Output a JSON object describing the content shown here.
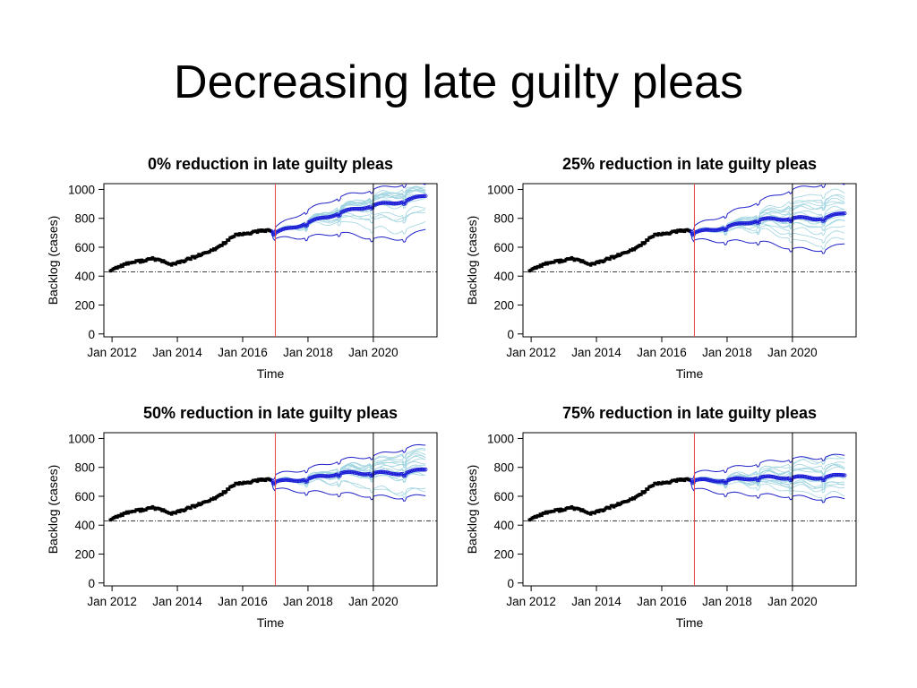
{
  "slide": {
    "title": "Decreasing late guilty pleas"
  },
  "colors": {
    "history": "#000000",
    "mean": "#1a1ad6",
    "bounds": "#2020c8",
    "simulations": "#9fd4e0",
    "forecast_start": "#e84a4a",
    "marker_2020": "#000000",
    "reference": "#000000"
  },
  "chart_data": [
    {
      "type": "line",
      "title": "0% reduction in late guilty pleas",
      "xlabel": "Time",
      "ylabel": "Backlog (cases)",
      "xlim": [
        2011.75,
        2021.95
      ],
      "ylim": [
        -20,
        1040
      ],
      "x_ticks": [
        2012,
        2014,
        2016,
        2018,
        2020
      ],
      "x_tick_labels": [
        "Jan 2012",
        "Jan 2014",
        "Jan 2016",
        "Jan 2018",
        "Jan 2020"
      ],
      "y_ticks": [
        0,
        200,
        400,
        600,
        800,
        1000
      ],
      "reference_line": 430,
      "vertical_lines": [
        2017.0,
        2020.0
      ],
      "history_end": 2016.85,
      "forecast_start_value": 720,
      "forecast": {
        "x": [
          2017.0,
          2018.0,
          2019.0,
          2020.0,
          2021.0,
          2021.6
        ],
        "mean": [
          700,
          770,
          840,
          890,
          920,
          960
        ],
        "upper": [
          740,
          860,
          950,
          1000,
          1040,
          1040
        ],
        "lower": [
          660,
          670,
          700,
          660,
          660,
          730
        ]
      },
      "grid": false
    },
    {
      "type": "line",
      "title": "25% reduction in late guilty pleas",
      "xlabel": "Time",
      "ylabel": "Backlog (cases)",
      "xlim": [
        2011.75,
        2021.95
      ],
      "ylim": [
        -20,
        1040
      ],
      "x_ticks": [
        2012,
        2014,
        2016,
        2018,
        2020
      ],
      "x_tick_labels": [
        "Jan 2012",
        "Jan 2014",
        "Jan 2016",
        "Jan 2018",
        "Jan 2020"
      ],
      "y_ticks": [
        0,
        200,
        400,
        600,
        800,
        1000
      ],
      "reference_line": 430,
      "vertical_lines": [
        2017.0,
        2020.0
      ],
      "history_end": 2016.85,
      "forecast_start_value": 720,
      "forecast": {
        "x": [
          2017.0,
          2018.0,
          2019.0,
          2020.0,
          2021.0,
          2021.6
        ],
        "mean": [
          700,
          740,
          790,
          800,
          800,
          840
        ],
        "upper": [
          750,
          830,
          920,
          1000,
          1040,
          1040
        ],
        "lower": [
          650,
          640,
          640,
          590,
          580,
          630
        ]
      },
      "grid": false
    },
    {
      "type": "line",
      "title": "50% reduction in late guilty pleas",
      "xlabel": "Time",
      "ylabel": "Backlog (cases)",
      "xlim": [
        2011.75,
        2021.95
      ],
      "ylim": [
        -20,
        1040
      ],
      "x_ticks": [
        2012,
        2014,
        2016,
        2018,
        2020
      ],
      "x_tick_labels": [
        "Jan 2012",
        "Jan 2014",
        "Jan 2016",
        "Jan 2018",
        "Jan 2020"
      ],
      "y_ticks": [
        0,
        200,
        400,
        600,
        800,
        1000
      ],
      "reference_line": 430,
      "vertical_lines": [
        2017.0,
        2020.0
      ],
      "history_end": 2016.85,
      "forecast_start_value": 720,
      "forecast": {
        "x": [
          2017.0,
          2018.0,
          2019.0,
          2020.0,
          2021.0,
          2021.6
        ],
        "mean": [
          700,
          720,
          760,
          760,
          760,
          790
        ],
        "upper": [
          750,
          790,
          850,
          880,
          930,
          960
        ],
        "lower": [
          650,
          630,
          620,
          600,
          590,
          610
        ]
      },
      "grid": false
    },
    {
      "type": "line",
      "title": "75% reduction in late guilty pleas",
      "xlabel": "Time",
      "ylabel": "Backlog (cases)",
      "xlim": [
        2011.75,
        2021.95
      ],
      "ylim": [
        -20,
        1040
      ],
      "x_ticks": [
        2012,
        2014,
        2016,
        2018,
        2020
      ],
      "x_tick_labels": [
        "Jan 2012",
        "Jan 2014",
        "Jan 2016",
        "Jan 2018",
        "Jan 2020"
      ],
      "y_ticks": [
        0,
        200,
        400,
        600,
        800,
        1000
      ],
      "reference_line": 430,
      "vertical_lines": [
        2017.0,
        2020.0
      ],
      "history_end": 2016.85,
      "forecast_start_value": 720,
      "forecast": {
        "x": [
          2017.0,
          2018.0,
          2019.0,
          2020.0,
          2021.0,
          2021.6
        ],
        "mean": [
          710,
          710,
          730,
          730,
          730,
          750
        ],
        "upper": [
          760,
          790,
          830,
          860,
          870,
          890
        ],
        "lower": [
          650,
          620,
          610,
          600,
          580,
          590
        ]
      },
      "grid": false
    }
  ],
  "history_data": {
    "x": [
      2011.95,
      2012.25,
      2012.5,
      2012.75,
      2013.0,
      2013.25,
      2013.5,
      2013.75,
      2014.0,
      2014.25,
      2014.5,
      2014.75,
      2015.0,
      2015.25,
      2015.5,
      2015.75,
      2016.0,
      2016.25,
      2016.5,
      2016.85
    ],
    "y": [
      440,
      470,
      490,
      500,
      510,
      520,
      510,
      480,
      490,
      510,
      530,
      550,
      570,
      600,
      640,
      680,
      690,
      700,
      710,
      720
    ]
  }
}
